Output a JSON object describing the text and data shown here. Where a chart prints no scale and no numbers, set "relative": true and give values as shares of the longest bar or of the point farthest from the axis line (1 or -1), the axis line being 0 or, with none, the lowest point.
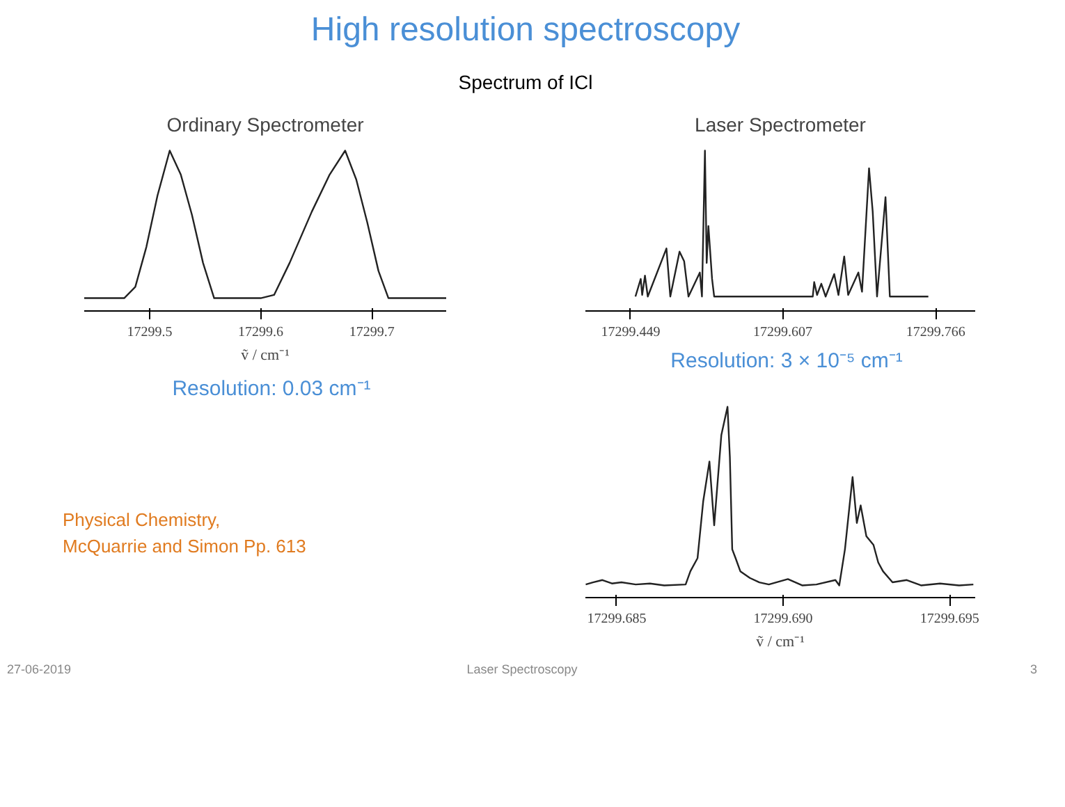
{
  "chart_data": [
    {
      "type": "other",
      "title": "High resolution spectroscopy",
      "subtitle": "Spectrum of ICl",
      "annotations": [
        "Physical Chemistry,\nMcQuarrie and Simon Pp. 613",
        "27-06-2019",
        "Laser Spectroscopy",
        "3"
      ]
    },
    {
      "type": "line",
      "title": "Ordinary Spectrometer",
      "xlabel": "ṽ / cm⁻¹",
      "relative": true,
      "xlim": [
        17299.441,
        17299.767
      ],
      "xticks": [
        17299.5,
        17299.6,
        17299.7
      ],
      "annotations": [
        "Resolution: 0.03 cm⁻¹"
      ],
      "series": [
        {
          "color": "#222222",
          "x": [
            17299.441,
            17299.477,
            17299.487,
            17299.497,
            17299.507,
            17299.518,
            17299.528,
            17299.538,
            17299.548,
            17299.558,
            17299.6,
            17299.612,
            17299.626,
            17299.646,
            17299.662,
            17299.676,
            17299.686,
            17299.696,
            17299.706,
            17299.715,
            17299.767
          ],
          "values": [
            0.08,
            0.08,
            0.15,
            0.4,
            0.72,
            1.0,
            0.85,
            0.6,
            0.3,
            0.08,
            0.08,
            0.1,
            0.3,
            0.62,
            0.85,
            1.0,
            0.82,
            0.55,
            0.25,
            0.08,
            0.08
          ]
        }
      ]
    },
    {
      "type": "line",
      "title": "Laser Spectrometer",
      "relative": true,
      "xlim": [
        17299.402,
        17299.807
      ],
      "xticks": [
        17299.449,
        17299.607,
        17299.766
      ],
      "annotations": [
        "Resolution: 3 × 10⁻⁵ cm⁻¹"
      ],
      "series": [
        {
          "color": "#222222",
          "x": [
            17299.454,
            17299.4595,
            17299.461,
            17299.4639,
            17299.4668,
            17299.4862,
            17299.4902,
            17299.4998,
            17299.5046,
            17299.5091,
            17299.5209,
            17299.5231,
            17299.5262,
            17299.528,
            17299.5298,
            17299.5336,
            17299.5358,
            17299.6382,
            17299.6397,
            17299.6427,
            17299.6471,
            17299.6516,
            17299.6605,
            17299.6649,
            17299.6709,
            17299.675,
            17299.6856,
            17299.6894,
            17299.6967,
            17299.7005,
            17299.705,
            17299.7138,
            17299.7183,
            17299.7583
          ],
          "values": [
            0.09,
            0.2,
            0.1,
            0.22,
            0.09,
            0.39,
            0.09,
            0.37,
            0.31,
            0.09,
            0.24,
            0.09,
            1.0,
            0.3,
            0.53,
            0.2,
            0.09,
            0.09,
            0.18,
            0.1,
            0.17,
            0.09,
            0.23,
            0.1,
            0.34,
            0.1,
            0.24,
            0.12,
            0.89,
            0.62,
            0.09,
            0.71,
            0.09,
            0.09
          ]
        }
      ]
    },
    {
      "type": "line",
      "xlabel": "ṽ / cm⁻¹",
      "relative": true,
      "xlim": [
        17299.68406,
        17299.69577
      ],
      "xticks": [
        17299.685,
        {
          "value": 17299.69,
          "label": "17299.690"
        },
        17299.695
      ],
      "series": [
        {
          "color": "#222222",
          "x": [
            17299.68407,
            17299.684286,
            17299.684571,
            17299.684857,
            17299.685143,
            17299.685571,
            17299.686,
            17299.686429,
            17299.687071,
            17299.687214,
            17299.687429,
            17299.6876,
            17299.687786,
            17299.687929,
            17299.688143,
            17299.688329,
            17299.6884,
            17299.688471,
            17299.688571,
            17299.688714,
            17299.689,
            17299.689286,
            17299.689571,
            17299.690143,
            17299.690571,
            17299.691,
            17299.691571,
            17299.691686,
            17299.691857,
            17299.692086,
            17299.692214,
            17299.692329,
            17299.6925,
            17299.692714,
            17299.692857,
            17299.693,
            17299.693286,
            17299.693714,
            17299.694143,
            17299.694714,
            17299.695286,
            17299.695714
          ],
          "values": [
            0.069,
            0.08,
            0.092,
            0.074,
            0.08,
            0.069,
            0.074,
            0.064,
            0.069,
            0.138,
            0.207,
            0.506,
            0.713,
            0.379,
            0.851,
            1.0,
            0.736,
            0.253,
            0.207,
            0.138,
            0.103,
            0.08,
            0.069,
            0.097,
            0.064,
            0.069,
            0.092,
            0.064,
            0.253,
            0.632,
            0.391,
            0.483,
            0.322,
            0.276,
            0.184,
            0.138,
            0.08,
            0.092,
            0.064,
            0.074,
            0.064,
            0.069
          ]
        }
      ]
    }
  ]
}
